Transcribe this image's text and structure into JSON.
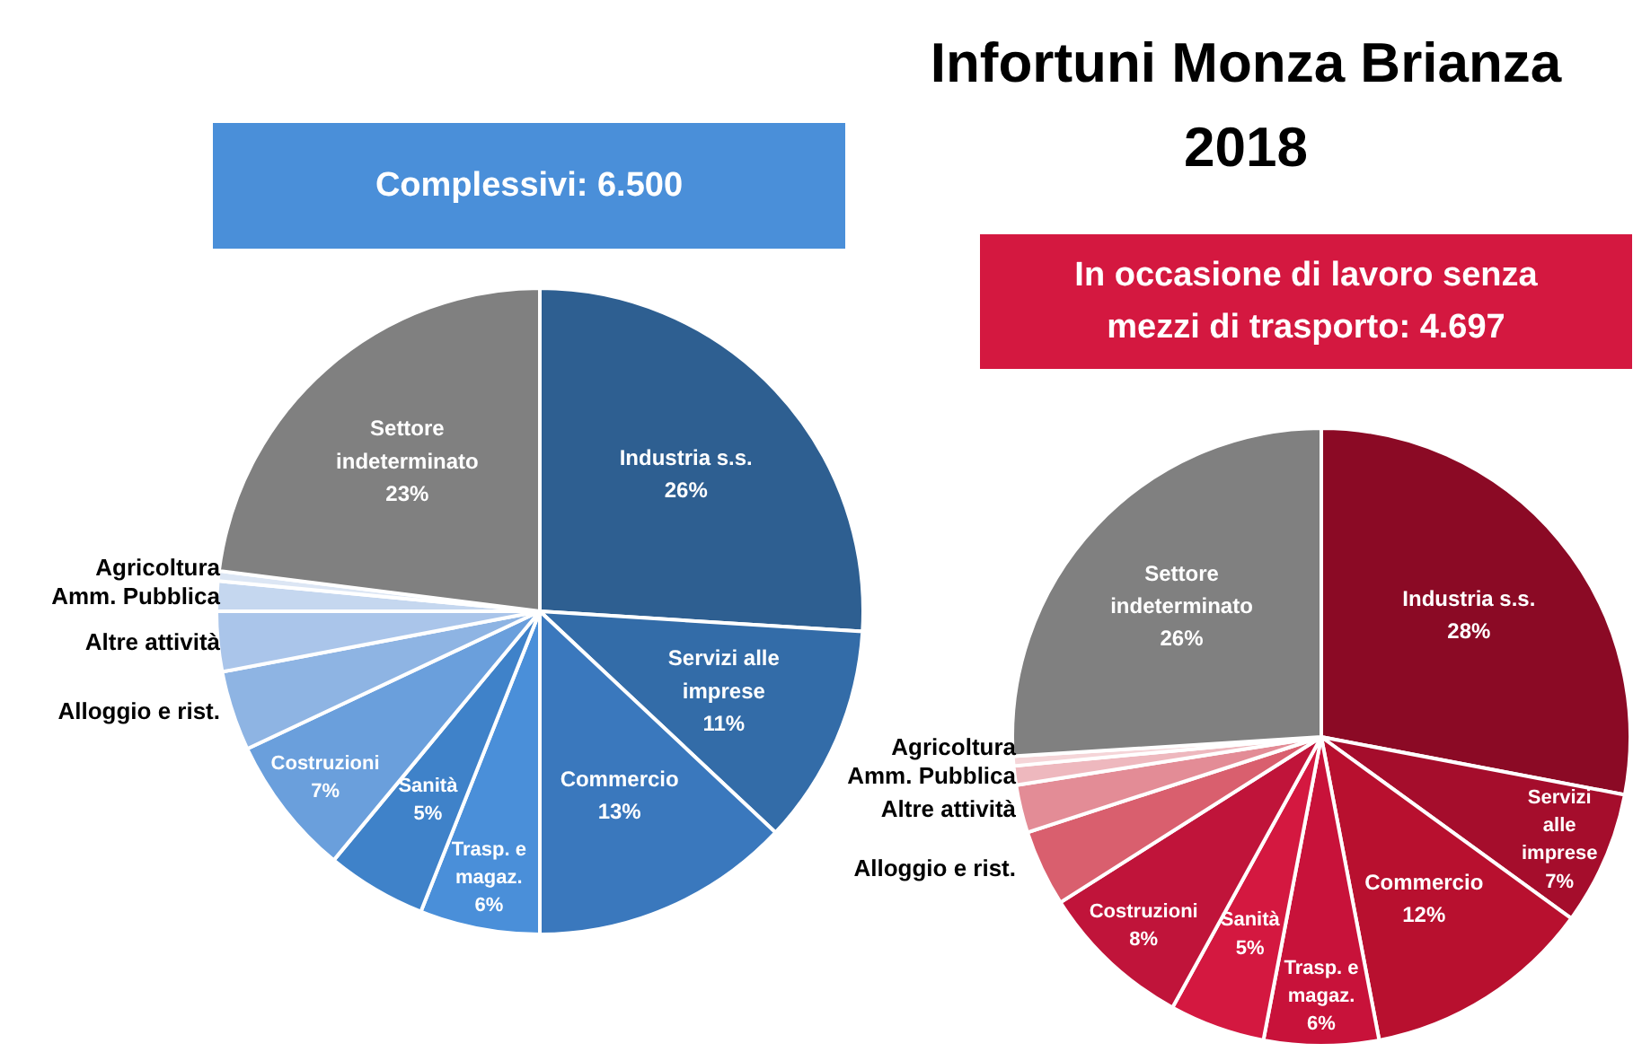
{
  "chart_data": [
    {
      "type": "other",
      "title": "Infortuni Monza Brianza 2018"
    },
    {
      "type": "pie",
      "title": "Complessivi: 6.500",
      "categories": [
        "Industria s.s.",
        "Servizi alle imprese",
        "Commercio",
        "Trasp. e magaz.",
        "Sanità",
        "Costruzioni",
        "Alloggio e rist.",
        "Altre attività",
        "Amm. Pubblica",
        "Agricoltura",
        "Settore indeterminato"
      ],
      "values": [
        26,
        11,
        13,
        6,
        5,
        7,
        4,
        3,
        1.5,
        0.5,
        23
      ],
      "colors": [
        "#2e5f91",
        "#336ca8",
        "#3a78bd",
        "#4a8fd9",
        "#3f82c9",
        "#6a9fdc",
        "#8eb4e3",
        "#aac5ea",
        "#c5d7ef",
        "#dce6f4",
        "#808080"
      ],
      "value_labels": [
        "26%",
        "11%",
        "13%",
        "6%",
        "5%",
        "7%",
        null,
        null,
        null,
        null,
        "23%"
      ]
    },
    {
      "type": "pie",
      "title": "In occasione di lavoro senza mezzi di trasporto: 4.697",
      "categories": [
        "Industria s.s.",
        "Servizi alle imprese",
        "Commercio",
        "Trasp. e magaz.",
        "Sanità",
        "Costruzioni",
        "Alloggio e rist.",
        "Altre attività",
        "Amm. Pubblica",
        "Agricoltura",
        "Settore indeterminato"
      ],
      "values": [
        28,
        7,
        12,
        6,
        5,
        8,
        4,
        2.5,
        1,
        0.5,
        26
      ],
      "colors": [
        "#8b0a25",
        "#a50d2c",
        "#b8102f",
        "#c8123a",
        "#d41840",
        "#c0143a",
        "#d95f6e",
        "#e38c96",
        "#eeb8be",
        "#f5d5d8",
        "#808080"
      ],
      "value_labels": [
        "28%",
        "7%",
        "12%",
        "6%",
        "5%",
        "8%",
        null,
        null,
        null,
        null,
        "26%"
      ]
    }
  ]
}
